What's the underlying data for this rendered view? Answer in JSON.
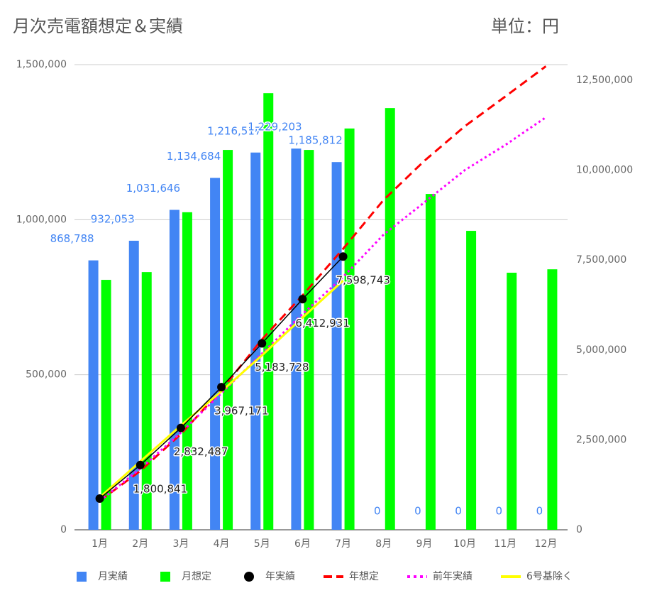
{
  "chart_data": {
    "type": "bar",
    "title": "月次売電額想定＆実績",
    "unit_label": "単位：円",
    "categories": [
      "1月",
      "2月",
      "3月",
      "4月",
      "5月",
      "6月",
      "7月",
      "8月",
      "9月",
      "10月",
      "11月",
      "12月"
    ],
    "ylim": [
      0,
      1500000
    ],
    "yticks": [
      0,
      {
        "value": 500000,
        "label": "500,000"
      },
      {
        "value": 1000000,
        "label": "1,000,000"
      },
      {
        "value": 1500000,
        "label": "1,500,000"
      }
    ],
    "y2lim": [
      0,
      12935000
    ],
    "y2ticks": [
      0,
      {
        "value": 2500000,
        "label": "2,500,000"
      },
      {
        "value": 5000000,
        "label": "5,000,000"
      },
      {
        "value": 7500000,
        "label": "7,500,000"
      },
      {
        "value": 10000000,
        "label": "10,000,000"
      },
      {
        "value": 12500000,
        "label": "12,500,000"
      }
    ],
    "grid": true,
    "legend": "bottom",
    "series": [
      {
        "name": "月実績",
        "type": "bar",
        "color": "#4285f4",
        "values": [
          868788,
          932053,
          1031646,
          1134684,
          1216517,
          1229203,
          1185812,
          0,
          0,
          0,
          0,
          0
        ],
        "value_labels": [
          "868,788",
          "932,053",
          "1,031,646",
          "1,134,684",
          "1,216,517",
          "1,229,203",
          "1,185,812",
          "0",
          "0",
          "0",
          "0",
          "0"
        ]
      },
      {
        "name": "月想定",
        "type": "bar",
        "color": "#00ff00",
        "values": [
          806000,
          831000,
          1024000,
          1225000,
          1408000,
          1225000,
          1294000,
          1360000,
          1083000,
          964000,
          829000,
          840000
        ]
      },
      {
        "name": "年実績",
        "type": "dots",
        "axis": "y2",
        "color": "#000000",
        "values": [
          868788,
          1800841,
          2832487,
          3967171,
          5183728,
          6412931,
          7598743,
          null,
          null,
          null,
          null,
          null
        ],
        "value_labels": [
          null,
          "1,800,841",
          "2,832,487",
          "3,967,171",
          "5,183,728",
          "6,412,931",
          "7,598,743",
          null,
          null,
          null,
          null,
          null
        ]
      },
      {
        "name": "年想定",
        "type": "line",
        "line_style": "dashed",
        "axis": "y2",
        "color": "#ff0000",
        "values": [
          806000,
          1637000,
          2661000,
          3886000,
          5294000,
          6519000,
          7813000,
          9173000,
          10256000,
          11220000,
          12049000,
          12889000
        ]
      },
      {
        "name": "前年実績",
        "type": "line",
        "line_style": "dotted",
        "axis": "y2",
        "color": "#ff00ff",
        "values": [
          800000,
          1700000,
          2700000,
          3800000,
          4900000,
          6000000,
          7030000,
          8210000,
          9100000,
          10000000,
          10700000,
          11470000
        ]
      },
      {
        "name": "6号基除く",
        "type": "line",
        "line_style": "solid",
        "axis": "y2",
        "color": "#ffff00",
        "values": [
          900000,
          1900000,
          2900000,
          3850000,
          4850000,
          5900000,
          6930000,
          null,
          null,
          null,
          null,
          null
        ]
      }
    ]
  }
}
